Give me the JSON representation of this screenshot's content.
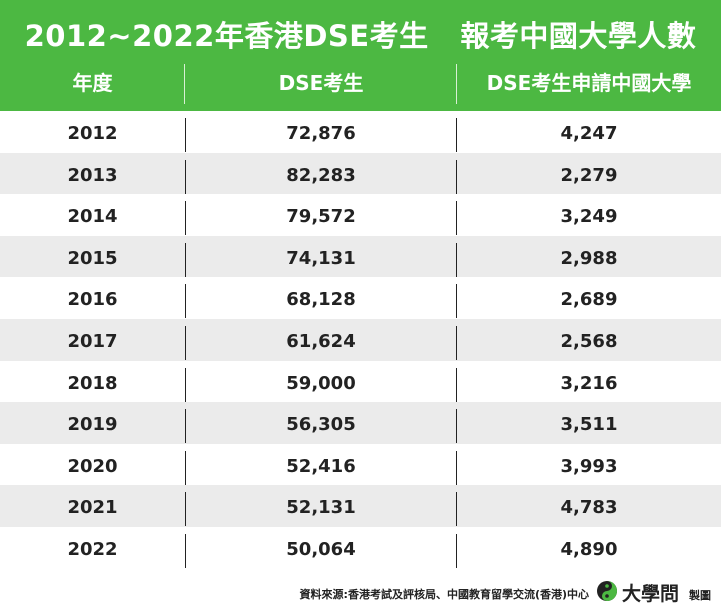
{
  "title": "2012~2022年香港DSE考生   報考中國大學人數",
  "columns": {
    "year": "年度",
    "dse": "DSE考生",
    "china": "DSE考生申請中國大學"
  },
  "rows": [
    {
      "year": "2012",
      "dse": "72,876",
      "china": "4,247"
    },
    {
      "year": "2013",
      "dse": "82,283",
      "china": "2,279"
    },
    {
      "year": "2014",
      "dse": "79,572",
      "china": "3,249"
    },
    {
      "year": "2015",
      "dse": "74,131",
      "china": "2,988"
    },
    {
      "year": "2016",
      "dse": "68,128",
      "china": "2,689"
    },
    {
      "year": "2017",
      "dse": "61,624",
      "china": "2,568"
    },
    {
      "year": "2018",
      "dse": "59,000",
      "china": "3,216"
    },
    {
      "year": "2019",
      "dse": "56,305",
      "china": "3,511"
    },
    {
      "year": "2020",
      "dse": "52,416",
      "china": "3,993"
    },
    {
      "year": "2021",
      "dse": "52,131",
      "china": "4,783"
    },
    {
      "year": "2022",
      "dse": "50,064",
      "china": "4,890"
    }
  ],
  "footer": {
    "source": "資料來源:香港考試及評核局、中國教育留學交流(香港)中心",
    "brand": "大學問",
    "made_by": "製圖"
  },
  "colors": {
    "header_bg": "#4cb842",
    "alt_row_bg": "#ebebeb",
    "text": "#222222"
  },
  "chart_data": {
    "type": "table",
    "title": "2012~2022年香港DSE考生   報考中國大學人數",
    "columns": [
      "年度",
      "DSE考生",
      "DSE考生申請中國大學"
    ],
    "rows": [
      [
        "2012",
        72876,
        4247
      ],
      [
        "2013",
        82283,
        2279
      ],
      [
        "2014",
        79572,
        3249
      ],
      [
        "2015",
        74131,
        2988
      ],
      [
        "2016",
        68128,
        2689
      ],
      [
        "2017",
        61624,
        2568
      ],
      [
        "2018",
        59000,
        3216
      ],
      [
        "2019",
        56305,
        3511
      ],
      [
        "2020",
        52416,
        3993
      ],
      [
        "2021",
        52131,
        4783
      ],
      [
        "2022",
        50064,
        4890
      ]
    ]
  }
}
